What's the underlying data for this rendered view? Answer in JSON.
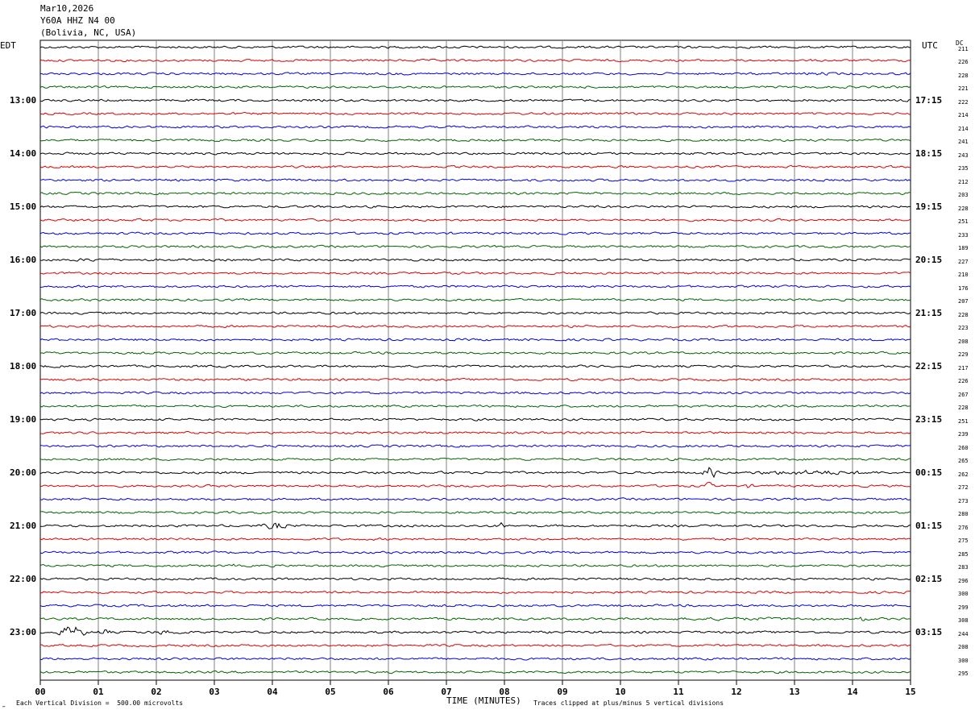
{
  "header": {
    "date": "Mar10,2026",
    "station": "Y60A HHZ N4 00",
    "location": "(Bolivia, NC, USA)"
  },
  "left_zone": "EDT",
  "right_zone": "UTC",
  "dc_label": "DC",
  "footer": {
    "scale": "Each Vertical Division =  500.00 microvolts",
    "xlabel": "TIME (MINUTES)",
    "clip": "Traces clipped at plus/minus 5 vertical divisions"
  },
  "colors": {
    "trace_cycle": [
      "#000000",
      "#dd0000",
      "#0000dd",
      "#006400"
    ],
    "grid": "#808080"
  },
  "chart_data": {
    "type": "line",
    "title": "Y60A HHZ N4 00",
    "xlabel": "TIME (MINUTES)",
    "xlim": [
      0,
      15
    ],
    "x_ticks": [
      "00",
      "01",
      "02",
      "03",
      "04",
      "05",
      "06",
      "07",
      "08",
      "09",
      "10",
      "11",
      "12",
      "13",
      "14",
      "15"
    ],
    "rows": 48,
    "rows_per_hour": 4,
    "left_hour_labels": [
      "13:00",
      "14:00",
      "15:00",
      "16:00",
      "17:00",
      "18:00",
      "19:00",
      "20:00",
      "21:00",
      "22:00",
      "23:00"
    ],
    "right_hour_labels": [
      "17:15",
      "18:15",
      "19:15",
      "20:15",
      "21:15",
      "22:15",
      "23:15",
      "00:15",
      "01:15",
      "02:15",
      "03:15"
    ],
    "dc_offsets": [
      211,
      226,
      228,
      221,
      222,
      214,
      214,
      241,
      243,
      235,
      212,
      203,
      228,
      251,
      233,
      189,
      227,
      210,
      176,
      207,
      228,
      223,
      208,
      229,
      217,
      226,
      267,
      228,
      251,
      239,
      260,
      265,
      262,
      272,
      273,
      280,
      276,
      275,
      285,
      283,
      296,
      300,
      299,
      308,
      244,
      208,
      300,
      295
    ],
    "events": [
      {
        "row": 2,
        "start_min": 12.9,
        "end_min": 13.9,
        "amp": 2.2
      },
      {
        "row": 13,
        "start_min": 0.9,
        "end_min": 2.6,
        "amp": 1.8
      },
      {
        "row": 16,
        "start_min": 0.1,
        "end_min": 1.6,
        "amp": 2.0
      },
      {
        "row": 32,
        "start_min": 6.7,
        "end_min": 7.2,
        "amp": 2.0
      },
      {
        "row": 32,
        "start_min": 11.4,
        "end_min": 11.7,
        "amp": 8.0
      },
      {
        "row": 32,
        "start_min": 11.9,
        "end_min": 14.7,
        "amp": 3.0
      },
      {
        "row": 33,
        "start_min": 0.1,
        "end_min": 0.4,
        "amp": 2.0
      },
      {
        "row": 33,
        "start_min": 11.4,
        "end_min": 11.6,
        "amp": 5.0
      },
      {
        "row": 33,
        "start_min": 12.1,
        "end_min": 12.3,
        "amp": 3.0
      },
      {
        "row": 36,
        "start_min": 3.8,
        "end_min": 4.3,
        "amp": 4.5
      },
      {
        "row": 36,
        "start_min": 7.9,
        "end_min": 8.0,
        "amp": 7.0
      },
      {
        "row": 39,
        "start_min": 3.3,
        "end_min": 3.4,
        "amp": 3.0
      },
      {
        "row": 43,
        "start_min": 9.1,
        "end_min": 14.8,
        "amp": 2.0
      },
      {
        "row": 43,
        "start_min": 14.1,
        "end_min": 14.2,
        "amp": 6.0
      },
      {
        "row": 44,
        "start_min": 0.3,
        "end_min": 0.8,
        "amp": 8.0
      },
      {
        "row": 44,
        "start_min": 1.0,
        "end_min": 1.2,
        "amp": 5.0
      },
      {
        "row": 44,
        "start_min": 1.8,
        "end_min": 2.6,
        "amp": 3.0
      },
      {
        "row": 44,
        "start_min": 6.6,
        "end_min": 6.8,
        "amp": 3.0
      }
    ]
  }
}
